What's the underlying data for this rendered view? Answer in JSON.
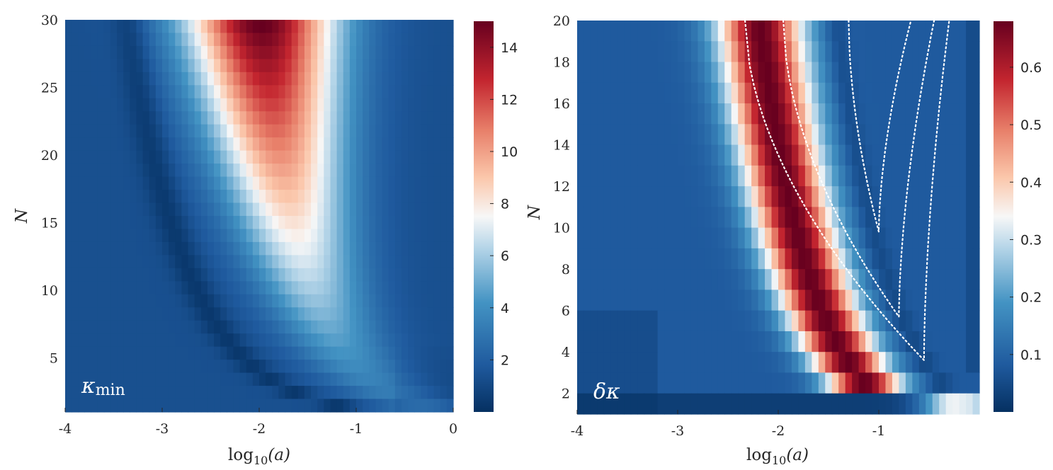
{
  "chart_data": [
    {
      "type": "heatmap",
      "title": "",
      "panel_label": {
        "symbol": "κ",
        "subscript": "min"
      },
      "xlabel": {
        "prefix": "log",
        "subscript": "10",
        "arg": "(a)"
      },
      "ylabel": "N",
      "xlim": [
        -4,
        0
      ],
      "ylim": [
        1,
        30
      ],
      "x_ticks": [
        "-4",
        "-3",
        "-2",
        "-1",
        "0"
      ],
      "y_ticks": [
        "5",
        "10",
        "15",
        "20",
        "25",
        "30"
      ],
      "colorbar": {
        "min": 0,
        "max": 15,
        "ticks": [
          "2",
          "4",
          "6",
          "8",
          "10",
          "12",
          "14"
        ]
      },
      "colormap": "red-white-blue",
      "n_rows": 30,
      "n_cols": 60,
      "description_peak": {
        "N": 30,
        "log10_a": -1.5,
        "value": 14.8
      }
    },
    {
      "type": "heatmap",
      "title": "",
      "panel_label": {
        "symbol": "δκ",
        "subscript": ""
      },
      "xlabel": {
        "prefix": "log",
        "subscript": "10",
        "arg": "(a)"
      },
      "ylabel": "N",
      "xlim": [
        -4,
        0
      ],
      "ylim": [
        1,
        20
      ],
      "x_ticks": [
        "-4",
        "-3",
        "-2",
        "-1"
      ],
      "y_ticks": [
        "2",
        "4",
        "6",
        "8",
        "10",
        "12",
        "14",
        "16",
        "18",
        "20"
      ],
      "colorbar": {
        "min": 0,
        "max": 0.68,
        "ticks": [
          "0.1",
          "0.2",
          "0.3",
          "0.4",
          "0.5",
          "0.6"
        ]
      },
      "colormap": "red-white-blue",
      "n_rows": 19,
      "n_cols": 60,
      "contours": [
        {
          "style": "dotted",
          "color": "#ffffff",
          "min_N": 3.6,
          "min_log10_a": -0.55
        },
        {
          "style": "dotted",
          "color": "#ffffff",
          "min_N": 5.7,
          "min_log10_a": -0.8
        },
        {
          "style": "dotted",
          "color": "#ffffff",
          "min_N": 9.8,
          "min_log10_a": -1.0
        }
      ]
    }
  ]
}
